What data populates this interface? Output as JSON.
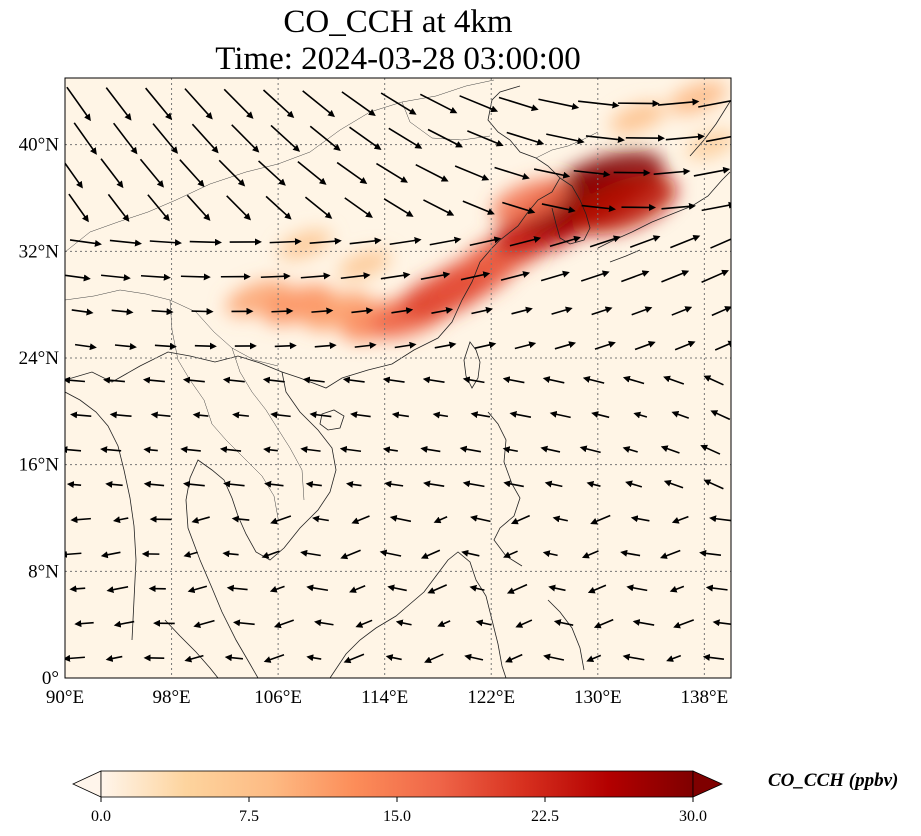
{
  "title": {
    "line1": "CO_CCH at 4km",
    "line2": "Time: 2024-03-28 03:00:00"
  },
  "map": {
    "variable": "CO_CCH",
    "level": "4km",
    "time": "2024-03-28 03:00:00",
    "lon_range": [
      90,
      140
    ],
    "lat_range": [
      0,
      45
    ],
    "gridlines": true,
    "lon_ticks": [
      {
        "value": 90,
        "label": "90°E"
      },
      {
        "value": 98,
        "label": "98°E"
      },
      {
        "value": 106,
        "label": "106°E"
      },
      {
        "value": 114,
        "label": "114°E"
      },
      {
        "value": 122,
        "label": "122°E"
      },
      {
        "value": 130,
        "label": "130°E"
      },
      {
        "value": 138,
        "label": "138°E"
      }
    ],
    "lat_ticks": [
      {
        "value": 0,
        "label": "0°"
      },
      {
        "value": 8,
        "label": "8°N"
      },
      {
        "value": 16,
        "label": "16°N"
      },
      {
        "value": 24,
        "label": "24°N"
      },
      {
        "value": 32,
        "label": "32°N"
      },
      {
        "value": 40,
        "label": "40°N"
      }
    ],
    "background_color": "#fff5e6",
    "wind_vector_color": "#000000",
    "plumes": [
      {
        "lon": 104.5,
        "lat": 28.5,
        "value": 11
      },
      {
        "lon": 107.5,
        "lat": 28.0,
        "value": 13
      },
      {
        "lon": 110.5,
        "lat": 27.5,
        "value": 12
      },
      {
        "lon": 113.5,
        "lat": 26.8,
        "value": 14
      },
      {
        "lon": 116.0,
        "lat": 27.2,
        "value": 17
      },
      {
        "lon": 118.5,
        "lat": 28.8,
        "value": 20
      },
      {
        "lon": 120.5,
        "lat": 30.0,
        "value": 19
      },
      {
        "lon": 123.0,
        "lat": 31.8,
        "value": 18
      },
      {
        "lon": 126.0,
        "lat": 33.8,
        "value": 24
      },
      {
        "lon": 128.5,
        "lat": 35.5,
        "value": 28
      },
      {
        "lon": 130.5,
        "lat": 37.0,
        "value": 30
      },
      {
        "lon": 132.0,
        "lat": 35.5,
        "value": 25
      },
      {
        "lon": 125.0,
        "lat": 35.8,
        "value": 16
      },
      {
        "lon": 108.0,
        "lat": 32.5,
        "value": 7
      },
      {
        "lon": 112.5,
        "lat": 31.0,
        "value": 7
      },
      {
        "lon": 133.0,
        "lat": 42.0,
        "value": 8
      },
      {
        "lon": 137.5,
        "lat": 43.5,
        "value": 9
      },
      {
        "lon": 138.5,
        "lat": 40.0,
        "value": 6
      }
    ]
  },
  "colorbar": {
    "label": "CO_CCH (ppbv)",
    "range": [
      0,
      30
    ],
    "extend": "both",
    "ticks": [
      {
        "value": 0,
        "label": "0.0"
      },
      {
        "value": 7.5,
        "label": "7.5"
      },
      {
        "value": 15,
        "label": "15.0"
      },
      {
        "value": 22.5,
        "label": "22.5"
      },
      {
        "value": 30,
        "label": "30.0"
      }
    ],
    "colors": [
      "#fff5eb",
      "#fdd49e",
      "#fdbb84",
      "#fc8d59",
      "#ef6548",
      "#d7301f",
      "#b30000",
      "#7f0000"
    ]
  }
}
